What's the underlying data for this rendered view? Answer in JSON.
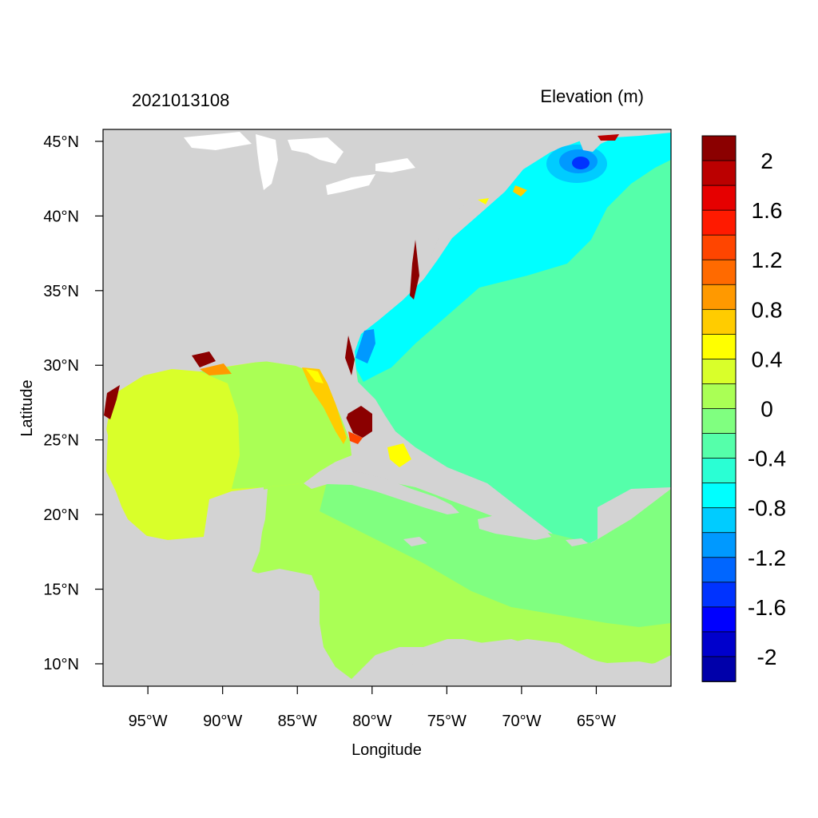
{
  "title_left": "2021013108",
  "title_right": "Elevation (m)",
  "x_axis": {
    "label": "Longitude",
    "range": [
      -98,
      -60
    ],
    "ticks": [
      {
        "value": -95,
        "label": "95°W"
      },
      {
        "value": -90,
        "label": "90°W"
      },
      {
        "value": -85,
        "label": "85°W"
      },
      {
        "value": -80,
        "label": "80°W"
      },
      {
        "value": -75,
        "label": "75°W"
      },
      {
        "value": -70,
        "label": "70°W"
      },
      {
        "value": -65,
        "label": "65°W"
      }
    ]
  },
  "y_axis": {
    "label": "Latitude",
    "range": [
      8.5,
      45.8
    ],
    "ticks": [
      {
        "value": 45,
        "label": "45°N"
      },
      {
        "value": 40,
        "label": "40°N"
      },
      {
        "value": 35,
        "label": "35°N"
      },
      {
        "value": 30,
        "label": "30°N"
      },
      {
        "value": 25,
        "label": "25°N"
      },
      {
        "value": 20,
        "label": "20°N"
      },
      {
        "value": 15,
        "label": "15°N"
      },
      {
        "value": 10,
        "label": "10°N"
      }
    ]
  },
  "colorbar": {
    "orientation": "vertical",
    "colors_top_to_bottom": [
      "#8b0000",
      "#bb0000",
      "#e60000",
      "#ff1a00",
      "#ff4500",
      "#ff6a00",
      "#ff9900",
      "#ffcc00",
      "#ffff00",
      "#d9ff2a",
      "#aaff55",
      "#80ff80",
      "#55ffaa",
      "#2affd4",
      "#00ffff",
      "#00ccff",
      "#0099ff",
      "#0066ff",
      "#0033ff",
      "#0000ff",
      "#0000cc",
      "#0000aa"
    ],
    "labels": [
      "2",
      "1.6",
      "1.2",
      "0.8",
      "0.4",
      "0",
      "-0.4",
      "-0.8",
      "-1.2",
      "-1.6",
      "-2"
    ]
  },
  "colors": {
    "land": "#d3d3d3",
    "gulf_of_mexico": "#d9ff2a",
    "caribbean": "#aaff55",
    "atlantic_open": "#55ffaa",
    "atlantic_shelf": "#00ffff"
  }
}
